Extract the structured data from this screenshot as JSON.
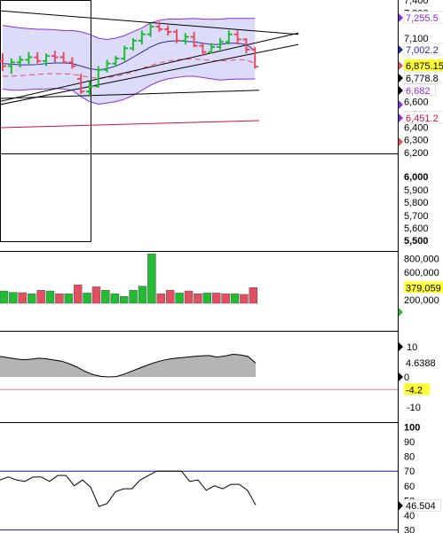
{
  "colors": {
    "up": "#22bb33",
    "down": "#e05060",
    "band_fill": "#dcdcfa",
    "band_line": "#8a2be2",
    "mid_line": "#2a2aa0",
    "trend_line": "#000000",
    "red_line": "#cc1144",
    "dashed_ma": "#e05060",
    "area_fill": "#b4b4b4",
    "flag_yellow": "#ffff33",
    "stoch_line": "#1a1a90",
    "zero_line": "#e08080"
  },
  "chart_data": [
    {
      "type": "ohlc",
      "panel": "price",
      "ylim": [
        6200,
        7400
      ],
      "y_axis": {
        "ticks": [
          {
            "value": 7400,
            "label": "7,400"
          },
          {
            "value": 7300,
            "label": "7,300"
          },
          {
            "value": 7100,
            "label": "7,100"
          },
          {
            "value": 6900,
            "label": "6,900"
          },
          {
            "value": 6600,
            "label": "6,600"
          },
          {
            "value": 6500,
            "label": "6,500"
          },
          {
            "value": 6400,
            "label": "6,400"
          },
          {
            "value": 6300,
            "label": "6,300"
          },
          {
            "value": 6200,
            "label": "6,200"
          }
        ],
        "extra_ticks": [
          {
            "value": 6000,
            "label": "6,000",
            "bold": true
          },
          {
            "value": 5900,
            "label": "5,900"
          },
          {
            "value": 5800,
            "label": "5,800"
          },
          {
            "value": 5700,
            "label": "5,700"
          },
          {
            "value": 5600,
            "label": "5,600"
          },
          {
            "value": 5500,
            "label": "5,500",
            "bold": true
          }
        ],
        "flags": [
          {
            "value": 7255.5,
            "label": "7,255.5",
            "color": "#8a2be2",
            "marker": "#8a2be2"
          },
          {
            "value": 7002.2,
            "label": "7,002.2",
            "color": "#2a2aa0",
            "marker": "#2a2aa0"
          },
          {
            "value": 6875.15,
            "label": "6,875.15",
            "color": "#000000",
            "highlight": true,
            "marker": "#e05060"
          },
          {
            "value": 6778.8,
            "label": "6,778.8",
            "color": "#000000",
            "marker": "#000000"
          },
          {
            "value": 6682,
            "label": "6,682",
            "color": "#8a2be2",
            "marker": "#000000"
          },
          {
            "value": 6451.2,
            "label": "6,451.2",
            "color": "#cc1144",
            "marker": "#8a2be2"
          }
        ]
      },
      "bars": [
        {
          "o": 6920,
          "h": 6980,
          "l": 6840,
          "c": 6880
        },
        {
          "o": 6880,
          "h": 6940,
          "l": 6820,
          "c": 6910
        },
        {
          "o": 6910,
          "h": 6960,
          "l": 6870,
          "c": 6930
        },
        {
          "o": 6930,
          "h": 6990,
          "l": 6890,
          "c": 6950
        },
        {
          "o": 6950,
          "h": 6990,
          "l": 6900,
          "c": 6920
        },
        {
          "o": 6920,
          "h": 6980,
          "l": 6880,
          "c": 6960
        },
        {
          "o": 6960,
          "h": 7000,
          "l": 6910,
          "c": 6950
        },
        {
          "o": 6950,
          "h": 6990,
          "l": 6900,
          "c": 6910
        },
        {
          "o": 6910,
          "h": 6950,
          "l": 6860,
          "c": 6880
        },
        {
          "o": 6780,
          "h": 6820,
          "l": 6660,
          "c": 6680
        },
        {
          "o": 6680,
          "h": 6760,
          "l": 6640,
          "c": 6720
        },
        {
          "o": 6720,
          "h": 6880,
          "l": 6710,
          "c": 6850
        },
        {
          "o": 6850,
          "h": 6930,
          "l": 6830,
          "c": 6900
        },
        {
          "o": 6900,
          "h": 6960,
          "l": 6880,
          "c": 6940
        },
        {
          "o": 6940,
          "h": 7040,
          "l": 6920,
          "c": 7020
        },
        {
          "o": 7020,
          "h": 7100,
          "l": 7000,
          "c": 7080
        },
        {
          "o": 7080,
          "h": 7160,
          "l": 7050,
          "c": 7130
        },
        {
          "o": 7130,
          "h": 7220,
          "l": 7110,
          "c": 7190
        },
        {
          "o": 7190,
          "h": 7230,
          "l": 7150,
          "c": 7170
        },
        {
          "o": 7170,
          "h": 7200,
          "l": 7120,
          "c": 7150
        },
        {
          "o": 7150,
          "h": 7170,
          "l": 7060,
          "c": 7080
        },
        {
          "o": 7080,
          "h": 7140,
          "l": 7050,
          "c": 7110
        },
        {
          "o": 7110,
          "h": 7150,
          "l": 7030,
          "c": 7040
        },
        {
          "o": 7040,
          "h": 7060,
          "l": 6960,
          "c": 6990
        },
        {
          "o": 6990,
          "h": 7060,
          "l": 6980,
          "c": 7030
        },
        {
          "o": 7030,
          "h": 7100,
          "l": 7010,
          "c": 7070
        },
        {
          "o": 7070,
          "h": 7160,
          "l": 7050,
          "c": 7130
        },
        {
          "o": 7130,
          "h": 7160,
          "l": 7050,
          "c": 7090
        },
        {
          "o": 7090,
          "h": 7100,
          "l": 6980,
          "c": 7010
        },
        {
          "o": 7010,
          "h": 7030,
          "l": 6860,
          "c": 6875.15
        }
      ],
      "bollinger_upper": [
        7200,
        7190,
        7180,
        7175,
        7170,
        7170,
        7165,
        7160,
        7160,
        7150,
        7130,
        7100,
        7090,
        7100,
        7120,
        7150,
        7180,
        7220,
        7240,
        7250,
        7250,
        7252,
        7255,
        7250,
        7248,
        7250,
        7255,
        7255,
        7255,
        7255.5
      ],
      "bollinger_lower": [
        6700,
        6690,
        6690,
        6695,
        6700,
        6700,
        6705,
        6700,
        6690,
        6640,
        6600,
        6580,
        6590,
        6600,
        6620,
        6650,
        6690,
        6730,
        6760,
        6780,
        6790,
        6800,
        6800,
        6790,
        6780,
        6770,
        6775,
        6778,
        6778,
        6778.8
      ],
      "bollinger_mid": [
        6900,
        6895,
        6890,
        6890,
        6892,
        6900,
        6905,
        6905,
        6900,
        6880,
        6860,
        6850,
        6860,
        6880,
        6910,
        6950,
        6990,
        7030,
        7060,
        7075,
        7080,
        7075,
        7070,
        7060,
        7050,
        7050,
        7060,
        7060,
        7050,
        7002.2
      ],
      "dashed_ma": [
        6800,
        6800,
        6805,
        6810,
        6815,
        6820,
        6820,
        6820,
        6815,
        6805,
        6790,
        6785,
        6790,
        6800,
        6815,
        6835,
        6860,
        6885,
        6905,
        6920,
        6930,
        6935,
        6935,
        6930,
        6925,
        6920,
        6925,
        6930,
        6930,
        6900
      ],
      "trend_lines": [
        {
          "x0": -3,
          "y0": 6560,
          "x1": 34,
          "y1": 7140
        },
        {
          "x0": -3,
          "y0": 6540,
          "x1": 34,
          "y1": 7050
        },
        {
          "x0": -3,
          "y0": 6620,
          "x1": 29.5,
          "y1": 6690
        },
        {
          "x0": -3,
          "y0": 6390,
          "x1": 29.5,
          "y1": 6451.2
        },
        {
          "x0": -3,
          "y0": 7330,
          "x1": 34,
          "y1": 7130
        }
      ]
    },
    {
      "type": "bar",
      "panel": "volume",
      "ylim": [
        150000,
        900000
      ],
      "y_axis": {
        "ticks": [
          {
            "value": 800000,
            "label": "800,000"
          },
          {
            "value": 600000,
            "label": "600,000"
          },
          {
            "value": 200000,
            "label": "200,000"
          }
        ],
        "flags": [
          {
            "value": 379059,
            "label": "379,059",
            "highlight": true
          }
        ]
      },
      "values": [
        330000,
        310000,
        305000,
        290000,
        340000,
        330000,
        290000,
        290000,
        420000,
        300000,
        390000,
        340000,
        290000,
        250000,
        340000,
        400000,
        870000,
        290000,
        340000,
        300000,
        330000,
        290000,
        300000,
        300000,
        290000,
        290000,
        280000,
        379059
      ],
      "directions": [
        "up",
        "up",
        "down",
        "up",
        "down",
        "up",
        "down",
        "up",
        "down",
        "up",
        "down",
        "up",
        "up",
        "up",
        "up",
        "up",
        "up",
        "down",
        "down",
        "up",
        "down",
        "down",
        "up",
        "down",
        "down",
        "up",
        "down",
        "down"
      ]
    },
    {
      "type": "area",
      "panel": "oscillator",
      "ylim": [
        -15,
        15
      ],
      "y_axis": {
        "ticks": [
          {
            "value": 10,
            "label": "10"
          },
          {
            "value": 0,
            "label": "0"
          },
          {
            "value": -10,
            "label": "-10"
          }
        ],
        "flags": [
          {
            "value": 4.6388,
            "label": "4.6388"
          },
          {
            "value": -4.2,
            "label": "-4.2",
            "highlight": true
          }
        ]
      },
      "reference_line": -4.2,
      "values": [
        6.8,
        6.4,
        6.0,
        5.7,
        5.9,
        6.2,
        6.0,
        5.6,
        5.2,
        4.3,
        3.2,
        1.8,
        0.8,
        0.2,
        0.0,
        0.1,
        0.9,
        1.9,
        2.9,
        3.9,
        4.8,
        5.5,
        6.0,
        6.3,
        6.5,
        6.8,
        7.0,
        7.1,
        6.6,
        6.9,
        7.5,
        7.3,
        6.8,
        4.6388
      ]
    },
    {
      "type": "line",
      "panel": "stochastic",
      "ylim": [
        28,
        102
      ],
      "y_axis": {
        "ticks": [
          {
            "value": 100,
            "label": "100",
            "bold": true
          },
          {
            "value": 90,
            "label": "90"
          },
          {
            "value": 80,
            "label": "80"
          },
          {
            "value": 70,
            "label": "70"
          },
          {
            "value": 60,
            "label": "60"
          },
          {
            "value": 50,
            "label": "50"
          },
          {
            "value": 40,
            "label": "40"
          },
          {
            "value": 30,
            "label": "30"
          }
        ],
        "flags": [
          {
            "value": 46.504,
            "label": "46.504"
          }
        ]
      },
      "bands": [
        70,
        30
      ],
      "values": [
        64,
        66,
        64,
        63,
        66,
        66,
        63,
        67,
        67,
        60,
        64,
        59,
        46,
        48,
        56,
        58,
        58,
        64,
        67,
        70,
        70,
        70,
        70,
        63,
        64,
        57,
        60,
        58,
        61,
        61,
        57,
        47
      ]
    }
  ]
}
